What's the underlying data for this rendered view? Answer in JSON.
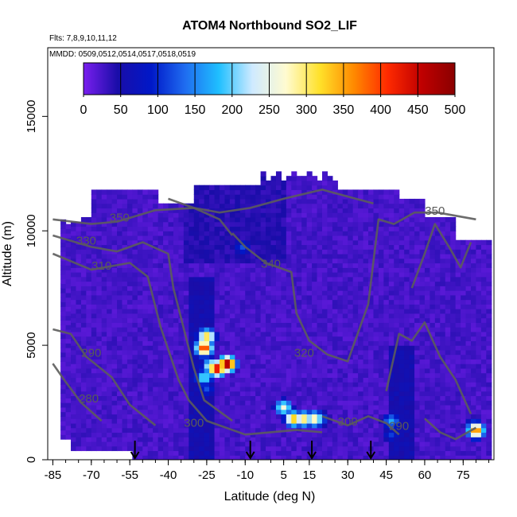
{
  "chart_data": {
    "type": "heatmap",
    "title": "ATOM4 Northbound SO2_LIF",
    "flights_label": "Flts: 7,8,9,10,11,12",
    "dates_label": "MMDD: 0509,0512,0514,0517,0518,0519",
    "xlabel": "Latitude (deg N)",
    "ylabel": "Altitude (m)",
    "xlim": [
      -87,
      87
    ],
    "ylim": [
      0,
      18000
    ],
    "x_ticks": [
      -85,
      -70,
      -55,
      -40,
      -25,
      -10,
      5,
      15,
      30,
      45,
      60,
      75
    ],
    "x_minor_step": 5,
    "y_ticks": [
      0,
      5000,
      10000,
      15000
    ],
    "colorbar": {
      "min": 0,
      "max": 500,
      "ticks": [
        0,
        50,
        100,
        150,
        200,
        250,
        300,
        350,
        400,
        450,
        500
      ],
      "colors": [
        "#7a1fef",
        "#1a0da8",
        "#0018c8",
        "#1f6cf0",
        "#1fbfff",
        "#cfeaff",
        "#fffbd0",
        "#ffe12a",
        "#ff8a00",
        "#ff2a00",
        "#c00000",
        "#8a0000"
      ]
    },
    "background_value": 25,
    "anomalies": [
      {
        "lat": -26,
        "alt": 5300,
        "value": 330
      },
      {
        "lat": -27,
        "alt": 4800,
        "value": 420
      },
      {
        "lat": -24,
        "alt": 4000,
        "value": 290
      },
      {
        "lat": -22,
        "alt": 3900,
        "value": 460
      },
      {
        "lat": -18,
        "alt": 4100,
        "value": 500
      },
      {
        "lat": -27,
        "alt": 3500,
        "value": 220
      },
      {
        "lat": -26,
        "alt": 3000,
        "value": 120
      },
      {
        "lat": -12,
        "alt": 9200,
        "value": 120
      },
      {
        "lat": 4,
        "alt": 2200,
        "value": 260
      },
      {
        "lat": 8,
        "alt": 1700,
        "value": 350
      },
      {
        "lat": 12,
        "alt": 1700,
        "value": 320
      },
      {
        "lat": 16,
        "alt": 1700,
        "value": 300
      },
      {
        "lat": 18,
        "alt": 1700,
        "value": 160
      },
      {
        "lat": 46,
        "alt": 1600,
        "value": 170
      },
      {
        "lat": 46,
        "alt": 1000,
        "value": 110
      },
      {
        "lat": 79,
        "alt": 1200,
        "value": 380
      },
      {
        "lat": 78,
        "alt": 1400,
        "value": 140
      }
    ],
    "flight_markers_lat": [
      -53,
      -8,
      16,
      39
    ],
    "contour_labels": [
      {
        "text": "350",
        "lat": -59,
        "alt": 10400
      },
      {
        "text": "330",
        "lat": -72,
        "alt": 9400
      },
      {
        "text": "310",
        "lat": -66,
        "alt": 8300
      },
      {
        "text": "340",
        "lat": 0,
        "alt": 8400
      },
      {
        "text": "350",
        "lat": 64,
        "alt": 10700
      },
      {
        "text": "320",
        "lat": 13,
        "alt": 4500
      },
      {
        "text": "300",
        "lat": -30,
        "alt": 1450
      },
      {
        "text": "300",
        "lat": 30,
        "alt": 1500
      },
      {
        "text": "290",
        "lat": -70,
        "alt": 4500
      },
      {
        "text": "280",
        "lat": -71,
        "alt": 2500
      },
      {
        "text": "290",
        "lat": 50,
        "alt": 1300
      }
    ]
  }
}
